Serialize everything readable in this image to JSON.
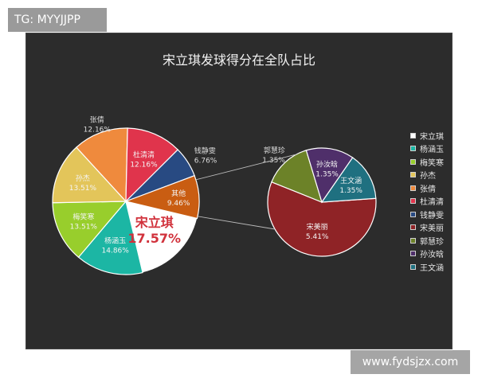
{
  "watermarks": {
    "top": "TG: MYYJJPP",
    "bottom": "www.fydsjzx.com"
  },
  "colors": {
    "background": "#2c2c2c",
    "connector": "#bbbbbb"
  },
  "chart_data": {
    "type": "pie",
    "title": "宋立琪发球得分在全队占比",
    "legend_position": "right",
    "main_pie": {
      "slices": [
        {
          "name": "宋立琪",
          "value": 17.57,
          "label": "17.57%",
          "color": "#ffffff"
        },
        {
          "name": "杨涵玉",
          "value": 14.86,
          "label": "14.86%",
          "color": "#1cb6a4"
        },
        {
          "name": "梅笑寒",
          "value": 13.51,
          "label": "13.51%",
          "color": "#98ce2c"
        },
        {
          "name": "孙杰",
          "value": 13.51,
          "label": "13.51%",
          "color": "#e3c55a"
        },
        {
          "name": "张倩",
          "value": 12.16,
          "label": "12.16%",
          "color": "#ef8a3d"
        },
        {
          "name": "杜清清",
          "value": 12.16,
          "label": "12.16%",
          "color": "#e0344c"
        },
        {
          "name": "钱静雯",
          "value": 6.76,
          "label": "6.76%",
          "color": "#284a82"
        },
        {
          "name": "其他",
          "value": 9.46,
          "label": "9.46%",
          "color": "#c95d12"
        }
      ]
    },
    "sub_pie": {
      "of": "其他",
      "slices": [
        {
          "name": "宋美丽",
          "value": 5.41,
          "label": "5.41%",
          "color": "#8f2326"
        },
        {
          "name": "郭慧珍",
          "value": 1.35,
          "label": "1.35%",
          "color": "#6c8228"
        },
        {
          "name": "孙汝晗",
          "value": 1.35,
          "label": "1.35%",
          "color": "#4f2f6a"
        },
        {
          "name": "王文涵",
          "value": 1.35,
          "label": "1.35%",
          "color": "#1f7080"
        }
      ]
    },
    "legend": [
      "宋立琪",
      "杨涵玉",
      "梅笑寒",
      "孙杰",
      "张倩",
      "杜清清",
      "钱静雯",
      "宋美丽",
      "郭慧珍",
      "孙汝晗",
      "王文涵"
    ]
  }
}
